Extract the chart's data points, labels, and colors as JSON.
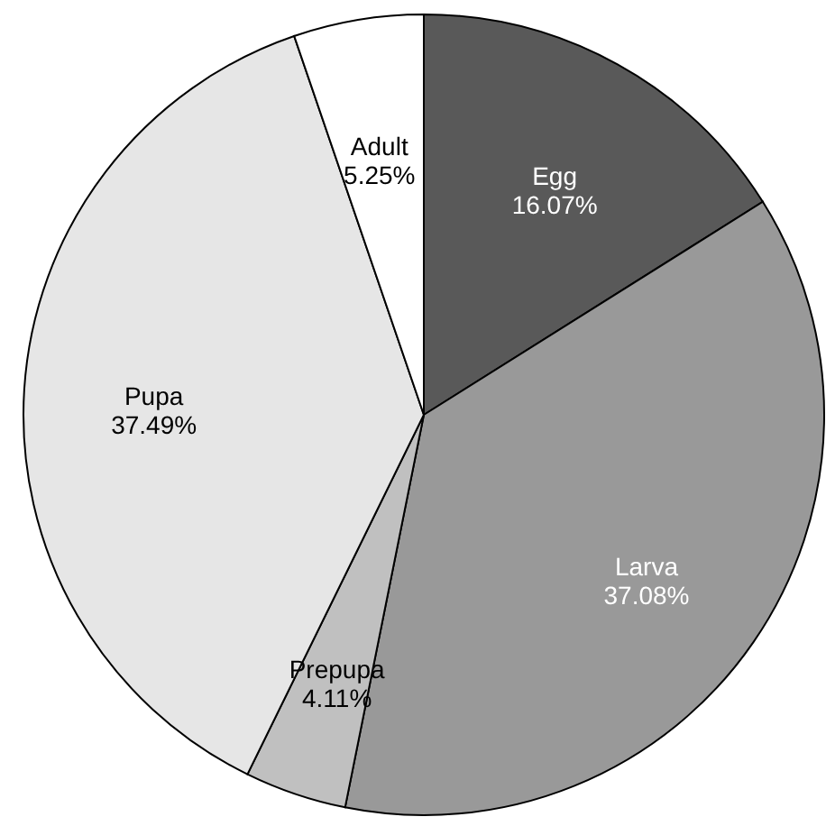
{
  "chart_data": {
    "type": "pie",
    "categories": [
      "Egg",
      "Larva",
      "Prepupa",
      "Pupa",
      "Adult"
    ],
    "values": [
      16.07,
      37.08,
      4.11,
      37.49,
      5.25
    ],
    "colors": [
      "#595959",
      "#999999",
      "#c0c0c0",
      "#e6e6e6",
      "#ffffff"
    ],
    "value_labels": [
      "16.07%",
      "37.08%",
      "4.11%",
      "37.49%",
      "5.25%"
    ]
  }
}
